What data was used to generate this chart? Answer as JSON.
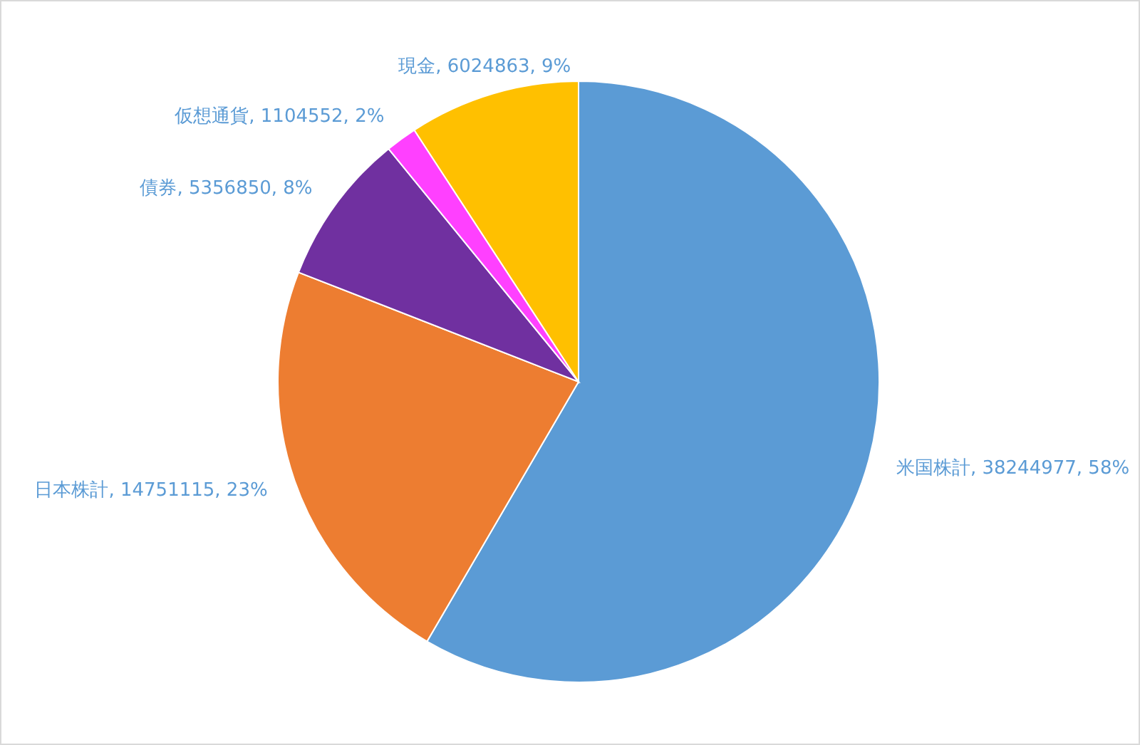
{
  "chart_data": {
    "type": "pie",
    "categories": [
      "米国株計",
      "日本株計",
      "債券",
      "仮想通貨",
      "現金"
    ],
    "values": [
      38244977,
      14751115,
      5356850,
      1104552,
      6024863
    ],
    "colors": [
      "#5b9bd5",
      "#ed7d31",
      "#7030a0",
      "#ff40ff",
      "#ffc000"
    ],
    "value_labels": [
      "38244977, 58%",
      "14751115, 23%",
      "5356850, 8%",
      "1104552, 2%",
      "6024863, 9%"
    ],
    "legend": false
  }
}
